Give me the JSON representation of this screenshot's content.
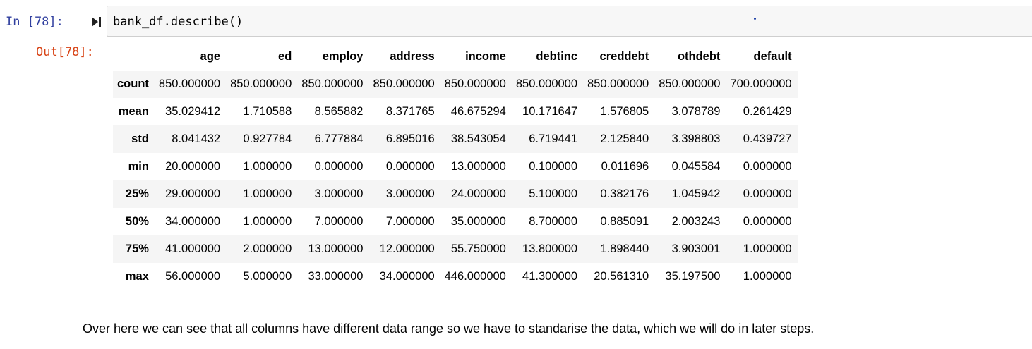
{
  "input_cell": {
    "prompt": "In [78]:",
    "code": "bank_df.describe()",
    "run_icon": "step-run-icon"
  },
  "output_cell": {
    "prompt": "Out[78]:",
    "table": {
      "columns": [
        "age",
        "ed",
        "employ",
        "address",
        "income",
        "debtinc",
        "creddebt",
        "othdebt",
        "default"
      ],
      "rows": [
        {
          "label": "count",
          "values": [
            "850.000000",
            "850.000000",
            "850.000000",
            "850.000000",
            "850.000000",
            "850.000000",
            "850.000000",
            "850.000000",
            "700.000000"
          ]
        },
        {
          "label": "mean",
          "values": [
            "35.029412",
            "1.710588",
            "8.565882",
            "8.371765",
            "46.675294",
            "10.171647",
            "1.576805",
            "3.078789",
            "0.261429"
          ]
        },
        {
          "label": "std",
          "values": [
            "8.041432",
            "0.927784",
            "6.777884",
            "6.895016",
            "38.543054",
            "6.719441",
            "2.125840",
            "3.398803",
            "0.439727"
          ]
        },
        {
          "label": "min",
          "values": [
            "20.000000",
            "1.000000",
            "0.000000",
            "0.000000",
            "13.000000",
            "0.100000",
            "0.011696",
            "0.045584",
            "0.000000"
          ]
        },
        {
          "label": "25%",
          "values": [
            "29.000000",
            "1.000000",
            "3.000000",
            "3.000000",
            "24.000000",
            "5.100000",
            "0.382176",
            "1.045942",
            "0.000000"
          ]
        },
        {
          "label": "50%",
          "values": [
            "34.000000",
            "1.000000",
            "7.000000",
            "7.000000",
            "35.000000",
            "8.700000",
            "0.885091",
            "2.003243",
            "0.000000"
          ]
        },
        {
          "label": "75%",
          "values": [
            "41.000000",
            "2.000000",
            "13.000000",
            "12.000000",
            "55.750000",
            "13.800000",
            "1.898440",
            "3.903001",
            "1.000000"
          ]
        },
        {
          "label": "max",
          "values": [
            "56.000000",
            "5.000000",
            "33.000000",
            "34.000000",
            "446.000000",
            "41.300000",
            "20.561310",
            "35.197500",
            "1.000000"
          ]
        }
      ]
    }
  },
  "markdown_cell": {
    "text": "Over here we can see that all columns have different data range so we have to standarise the data, which we will do in later steps."
  },
  "colors": {
    "in_prompt": "#303f9f",
    "out_prompt": "#d84315",
    "code_background": "#f7f7f7",
    "stripe": "#f5f5f5"
  }
}
